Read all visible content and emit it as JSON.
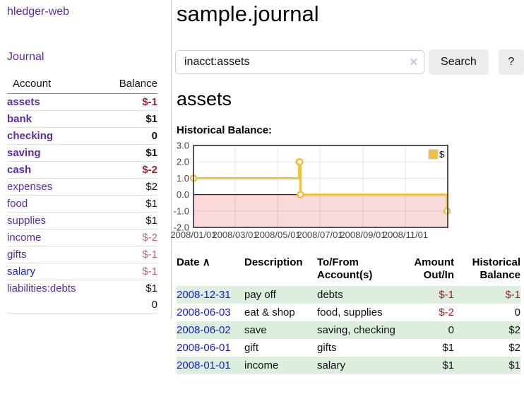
{
  "app": {
    "title": "hledger-web"
  },
  "nav": {
    "journal": "Journal"
  },
  "sidebar": {
    "header": {
      "account": "Account",
      "balance": "Balance"
    },
    "accounts": [
      {
        "name": "assets",
        "balance": "$-1",
        "level": 1,
        "bold": true,
        "amount_style": "neg-strong",
        "link": "purple"
      },
      {
        "name": "bank",
        "balance": "$1",
        "level": 2,
        "bold": true,
        "amount_style": "pos",
        "link": "purple"
      },
      {
        "name": "checking",
        "balance": "0",
        "level": 3,
        "bold": true,
        "amount_style": "pos",
        "link": "purple"
      },
      {
        "name": "saving",
        "balance": "$1",
        "level": 3,
        "bold": true,
        "amount_style": "pos",
        "link": "purple"
      },
      {
        "name": "cash",
        "balance": "$-2",
        "level": 2,
        "bold": true,
        "amount_style": "neg-strong",
        "link": "purple"
      },
      {
        "name": "expenses",
        "balance": "$2",
        "level": 1,
        "bold": false,
        "amount_style": "pos",
        "link": "purple"
      },
      {
        "name": "food",
        "balance": "$1",
        "level": 2,
        "bold": false,
        "amount_style": "pos",
        "link": "purple"
      },
      {
        "name": "supplies",
        "balance": "$1",
        "level": 2,
        "bold": false,
        "amount_style": "pos",
        "link": "purple"
      },
      {
        "name": "income",
        "balance": "$-2",
        "level": 1,
        "bold": false,
        "amount_style": "neg-soft",
        "link": "purple"
      },
      {
        "name": "gifts",
        "balance": "$-1",
        "level": 2,
        "bold": false,
        "amount_style": "neg-soft",
        "link": "purple"
      },
      {
        "name": "salary",
        "balance": "$-1",
        "level": 2,
        "bold": false,
        "amount_style": "neg-soft",
        "link": "blue"
      },
      {
        "name": "liabilities:debts",
        "balance": "$1",
        "level": 1,
        "bold": false,
        "amount_style": "pos",
        "link": "purple"
      }
    ],
    "total": "0"
  },
  "main": {
    "title": "sample.journal",
    "search": {
      "value": "inacct:assets",
      "clear_icon": "✕",
      "button": "Search",
      "help_button": "?"
    },
    "account_heading": "assets",
    "chart_heading": "Historical Balance:"
  },
  "chart_data": {
    "type": "line",
    "step": true,
    "title": "Historical Balance",
    "series": [
      {
        "name": "$",
        "color": "#edc240",
        "points": [
          [
            "2008/01/01",
            1
          ],
          [
            "2008/06/01",
            2
          ],
          [
            "2008/06/02",
            2
          ],
          [
            "2008/06/03",
            0
          ],
          [
            "2008/12/31",
            -1
          ]
        ]
      }
    ],
    "x_range": [
      "2008/01/01",
      "2009/01/01"
    ],
    "x_ticks": [
      "2008/01/01",
      "2008/03/01",
      "2008/05/01",
      "2008/07/01",
      "2008/09/01",
      "2008/11/01"
    ],
    "y_ticks": [
      "3.0",
      "2.0",
      "1.0",
      "0.0",
      "-1.0",
      "-2.0"
    ],
    "ylim": [
      -2,
      3
    ],
    "grid": true,
    "legend_position": "top-right",
    "legend_label": "$",
    "negative_region_color": "#f9d9d9",
    "zero_line_color": "#8b0000",
    "border_color": "#545454"
  },
  "register": {
    "header": {
      "date": "Date",
      "sort_icon": "∧",
      "description": "Description",
      "accounts": "To/From Account(s)",
      "amount": "Amount Out/In",
      "balance": "Historical Balance"
    },
    "rows": [
      {
        "date": "2008-12-31",
        "description": "pay off",
        "accounts": "debts",
        "amount": "$-1",
        "amount_neg": true,
        "balance": "$-1",
        "balance_neg": true,
        "shaded": true
      },
      {
        "date": "2008-06-03",
        "description": "eat & shop",
        "accounts": "food, supplies",
        "amount": "$-2",
        "amount_neg": true,
        "balance": "0",
        "balance_neg": false,
        "shaded": false
      },
      {
        "date": "2008-06-02",
        "description": "save",
        "accounts": "saving, checking",
        "amount": "0",
        "amount_neg": false,
        "balance": "$2",
        "balance_neg": false,
        "shaded": true
      },
      {
        "date": "2008-06-01",
        "description": "gift",
        "accounts": "gifts",
        "amount": "$1",
        "amount_neg": false,
        "balance": "$2",
        "balance_neg": false,
        "shaded": false
      },
      {
        "date": "2008-01-01",
        "description": "income",
        "accounts": "salary",
        "amount": "$1",
        "amount_neg": false,
        "balance": "$1",
        "balance_neg": false,
        "shaded": true
      }
    ]
  },
  "colors": {
    "link_purple": "#5e2ca2",
    "link_blue": "#2222cc",
    "negative_strong": "#9d1d2f",
    "negative_soft": "#bf6270",
    "row_green": "#dceedd",
    "chart_gold": "#edc240",
    "chart_negative_bg": "#f9d9d9"
  }
}
